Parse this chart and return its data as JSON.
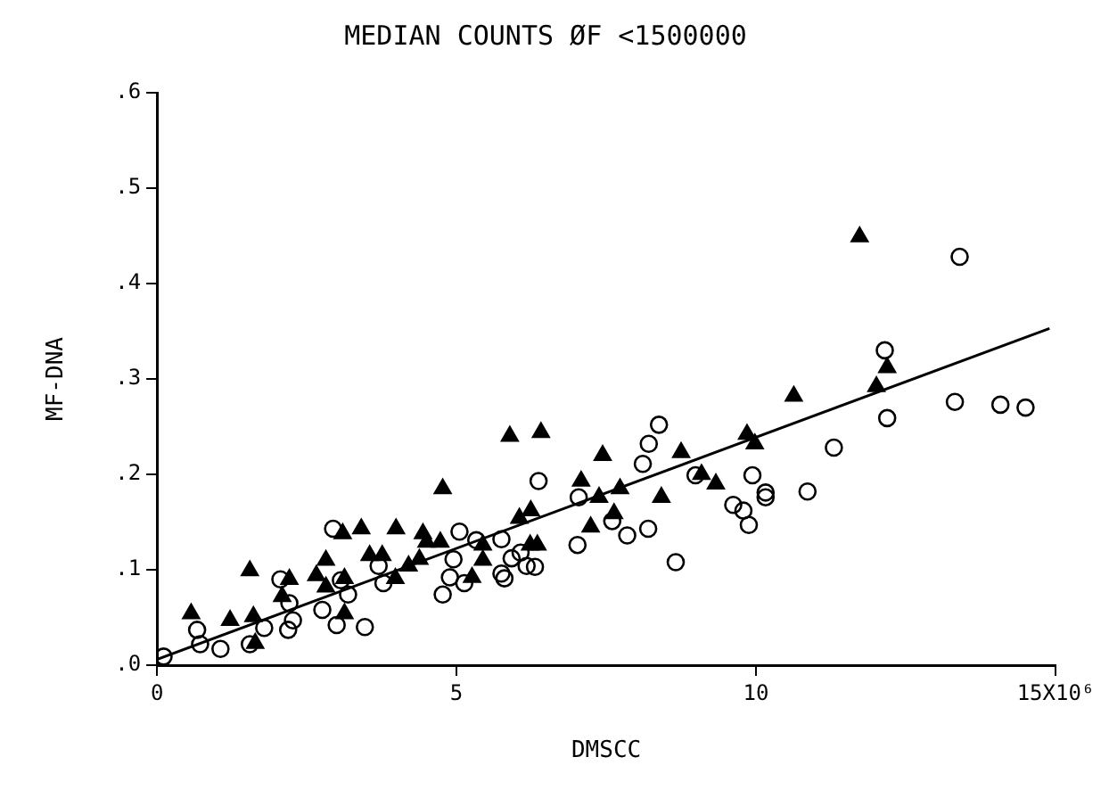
{
  "chart_data": {
    "type": "scatter",
    "title": "MEDIAN COUNTS ØF <1500000",
    "xlabel": "DMSCC",
    "ylabel": "MF-DNA",
    "xlim": [
      0,
      15
    ],
    "xticks": [
      0,
      5,
      10,
      {
        "value": 15,
        "label": "15X10⁶"
      }
    ],
    "ylim": [
      0,
      0.6
    ],
    "yticks": [
      {
        "value": 0,
        "label": ".0"
      },
      {
        "value": 0.1,
        "label": ".1"
      },
      {
        "value": 0.2,
        "label": ".2"
      },
      {
        "value": 0.3,
        "label": ".3"
      },
      {
        "value": 0.4,
        "label": ".4"
      },
      {
        "value": 0.5,
        "label": ".5"
      },
      {
        "value": 0.6,
        "label": ".6"
      }
    ],
    "grid": false,
    "legend": false,
    "series": [
      {
        "color": "#000000",
        "marker": "triangle",
        "x": [
          0.57,
          1.22,
          1.55,
          1.61,
          1.64,
          2.21,
          2.09,
          2.66,
          2.82,
          2.82,
          3.1,
          3.13,
          3.13,
          3.41,
          3.55,
          3.76,
          3.98,
          3.99,
          4.2,
          4.38,
          4.44,
          4.5,
          4.77,
          4.73,
          5.44,
          5.44,
          5.26,
          5.89,
          6.41,
          6.05,
          6.24,
          6.23,
          6.35,
          7.08,
          7.38,
          7.24,
          7.44,
          7.73,
          7.63,
          8.42,
          8.75,
          9.09,
          9.33,
          9.85,
          9.98,
          10.63,
          11.73,
          12.01,
          12.19
        ],
        "values": [
          0.054,
          0.047,
          0.099,
          0.051,
          0.023,
          0.09,
          0.072,
          0.094,
          0.11,
          0.082,
          0.138,
          0.091,
          0.054,
          0.143,
          0.115,
          0.115,
          0.091,
          0.143,
          0.104,
          0.111,
          0.138,
          0.129,
          0.185,
          0.129,
          0.11,
          0.126,
          0.092,
          0.24,
          0.244,
          0.154,
          0.162,
          0.126,
          0.126,
          0.193,
          0.176,
          0.145,
          0.22,
          0.185,
          0.159,
          0.176,
          0.223,
          0.2,
          0.19,
          0.242,
          0.232,
          0.282,
          0.449,
          0.292,
          0.312
        ]
      },
      {
        "color": "#000000",
        "marker": "circle",
        "x": [
          0.11,
          0.67,
          0.72,
          1.06,
          1.55,
          1.79,
          2.06,
          2.19,
          2.21,
          2.27,
          2.76,
          2.94,
          3.0,
          3.07,
          3.19,
          3.47,
          3.7,
          3.78,
          4.77,
          4.89,
          4.95,
          5.05,
          5.13,
          5.33,
          5.75,
          5.75,
          5.8,
          5.92,
          6.07,
          6.17,
          6.31,
          6.37,
          7.02,
          7.04,
          7.6,
          7.85,
          8.11,
          8.21,
          8.2,
          8.38,
          8.66,
          8.99,
          9.62,
          9.79,
          9.88,
          9.94,
          10.16,
          10.16,
          10.86,
          11.3,
          12.15,
          12.19,
          13.32,
          13.4,
          14.08,
          14.5
        ],
        "values": [
          0.009,
          0.037,
          0.022,
          0.017,
          0.022,
          0.039,
          0.09,
          0.037,
          0.065,
          0.047,
          0.058,
          0.143,
          0.042,
          0.089,
          0.074,
          0.04,
          0.104,
          0.086,
          0.074,
          0.092,
          0.111,
          0.14,
          0.086,
          0.131,
          0.132,
          0.096,
          0.091,
          0.112,
          0.118,
          0.104,
          0.103,
          0.193,
          0.126,
          0.176,
          0.151,
          0.136,
          0.211,
          0.232,
          0.143,
          0.252,
          0.108,
          0.199,
          0.168,
          0.162,
          0.147,
          0.199,
          0.176,
          0.181,
          0.182,
          0.228,
          0.33,
          0.259,
          0.276,
          0.428,
          0.273,
          0.27
        ]
      },
      {
        "type": "line",
        "color": "#000000",
        "marker": "none",
        "x": [
          0,
          14.9
        ],
        "values": [
          0.006,
          0.353
        ]
      }
    ]
  }
}
